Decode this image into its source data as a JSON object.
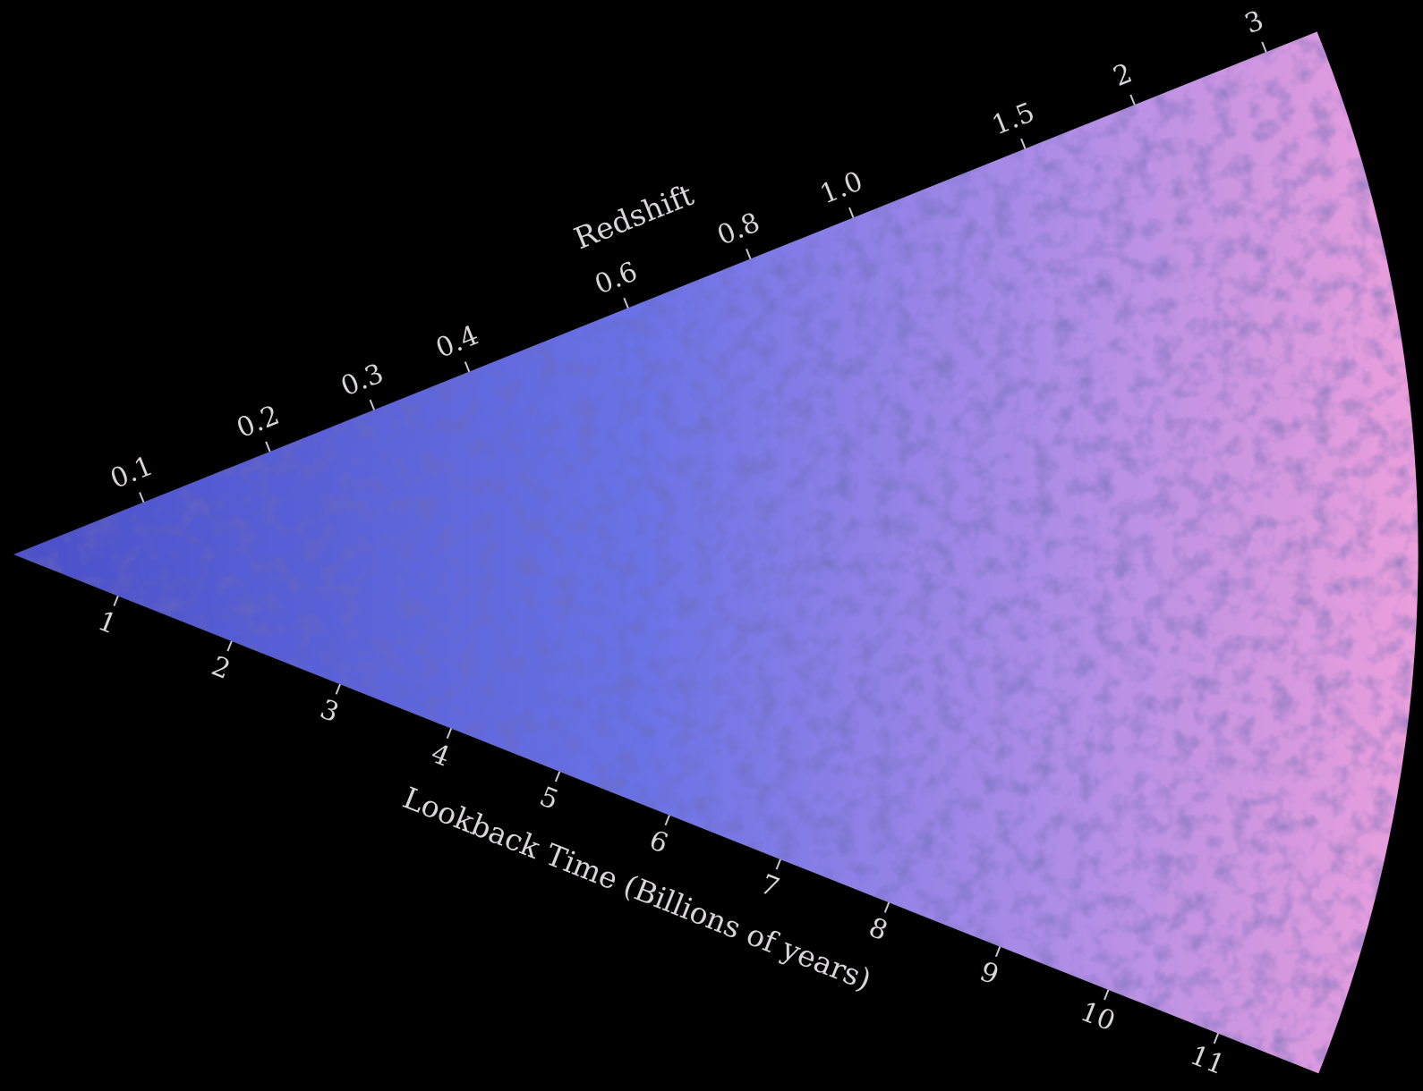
{
  "top_axis": {
    "title": "Redshift",
    "ticks": [
      "0.1",
      "0.2",
      "0.3",
      "0.4",
      "0.6",
      "0.8",
      "1.0",
      "1.5",
      "2",
      "3"
    ]
  },
  "bottom_axis": {
    "title": "Lookback Time (Billions of years)",
    "ticks": [
      "1",
      "2",
      "3",
      "4",
      "5",
      "6",
      "7",
      "8",
      "9",
      "10",
      "11"
    ]
  }
}
